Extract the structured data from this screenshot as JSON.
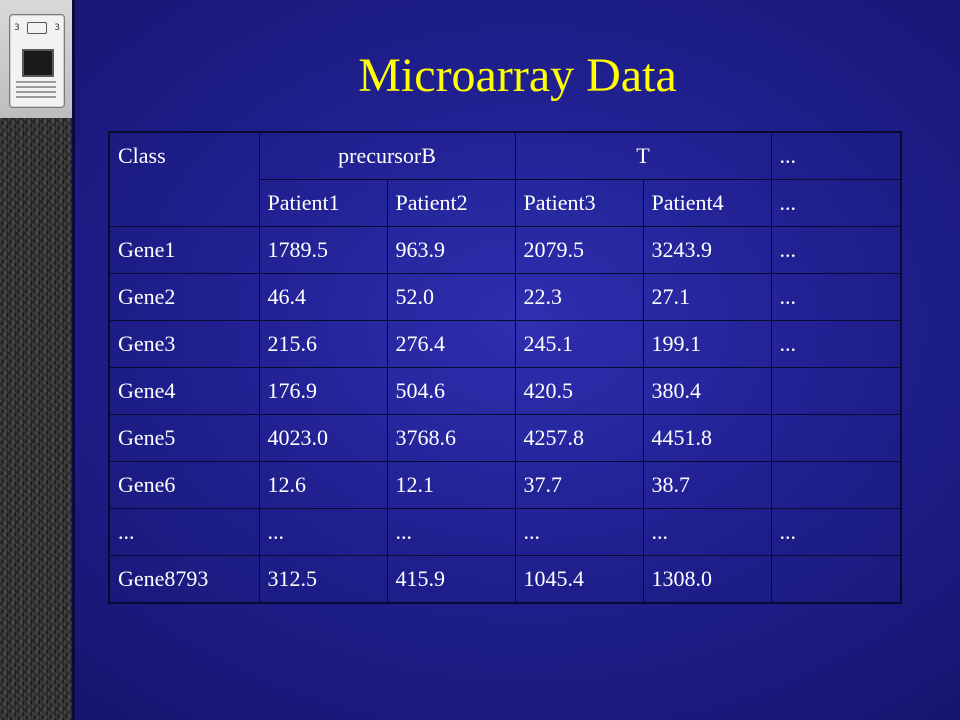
{
  "slide": {
    "title": "Microarray Data"
  },
  "table": {
    "header": {
      "class_label": "Class",
      "group_b": "precursorB",
      "group_t": "T",
      "group_more": "...",
      "patients": [
        "Patient1",
        "Patient2",
        "Patient3",
        "Patient4"
      ],
      "patients_more": "..."
    },
    "rows": [
      {
        "gene": "Gene1",
        "values": [
          "1789.5",
          "963.9",
          "2079.5",
          "3243.9"
        ],
        "more": "..."
      },
      {
        "gene": "Gene2",
        "values": [
          "46.4",
          "52.0",
          "22.3",
          "27.1"
        ],
        "more": "..."
      },
      {
        "gene": "Gene3",
        "values": [
          "215.6",
          "276.4",
          "245.1",
          "199.1"
        ],
        "more": "..."
      },
      {
        "gene": "Gene4",
        "values": [
          "176.9",
          "504.6",
          "420.5",
          "380.4"
        ],
        "more": ""
      },
      {
        "gene": "Gene5",
        "values": [
          "4023.0",
          "3768.6",
          "4257.8",
          "4451.8"
        ],
        "more": ""
      },
      {
        "gene": "Gene6",
        "values": [
          "12.6",
          "12.1",
          "37.7",
          "38.7"
        ],
        "more": ""
      },
      {
        "gene": "...",
        "values": [
          "...",
          "...",
          "...",
          "..."
        ],
        "more": "..."
      },
      {
        "gene": "Gene8793",
        "values": [
          "312.5",
          "415.9",
          "1045.4",
          "1308.0"
        ],
        "more": ""
      }
    ]
  }
}
